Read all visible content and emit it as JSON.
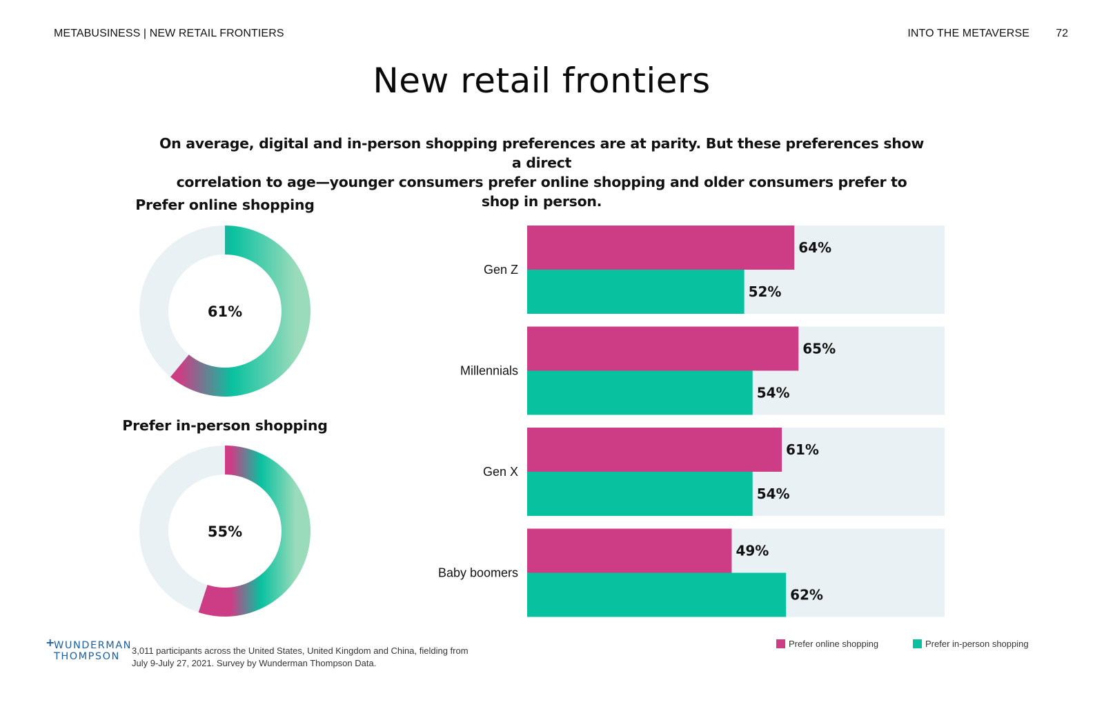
{
  "header": {
    "left": "METABUSINESS | NEW RETAIL FRONTIERS",
    "right": "INTO THE METAVERSE",
    "page_number": "72"
  },
  "title": "New retail frontiers",
  "subtitle": {
    "line1": "On average, digital and in-person shopping preferences are at parity. But these preferences show a direct",
    "line2": "correlation to age—younger consumers prefer online shopping and older consumers prefer to shop in person."
  },
  "colors": {
    "online": "#cc3d85",
    "in_person": "#08c19f",
    "track": "#e9f1f5",
    "logo_blue": "#1a5fa8"
  },
  "footer": {
    "logo_line1": "WUNDERMAN",
    "logo_line2": "THOMPSON",
    "logo_plus": "+",
    "note_line1": "3,011 participants across the United States, United Kingdom and China, fielding from",
    "note_line2": "July 9-July 27, 2021. Survey by Wunderman Thompson Data."
  },
  "chart_data": [
    {
      "type": "pie",
      "style": "donut",
      "title": "Prefer online shopping",
      "value": 61,
      "label": "61%",
      "unit": "%"
    },
    {
      "type": "pie",
      "style": "donut",
      "title": "Prefer in-person shopping",
      "value": 55,
      "label": "55%",
      "unit": "%"
    },
    {
      "type": "bar",
      "orientation": "horizontal",
      "categories": [
        "Gen Z",
        "Millennials",
        "Gen X",
        "Baby boomers"
      ],
      "series": [
        {
          "name": "Prefer online shopping",
          "values": [
            64,
            65,
            61,
            49
          ],
          "labels": [
            "64%",
            "65%",
            "61%",
            "49%"
          ]
        },
        {
          "name": "Prefer in-person shopping",
          "values": [
            52,
            54,
            54,
            62
          ],
          "labels": [
            "52%",
            "54%",
            "54%",
            "62%"
          ]
        }
      ],
      "xlim": [
        0,
        100
      ],
      "grid": false,
      "legend": "bottom-right",
      "legend_labels": [
        "Prefer online shopping",
        "Prefer in-person shopping"
      ]
    }
  ]
}
